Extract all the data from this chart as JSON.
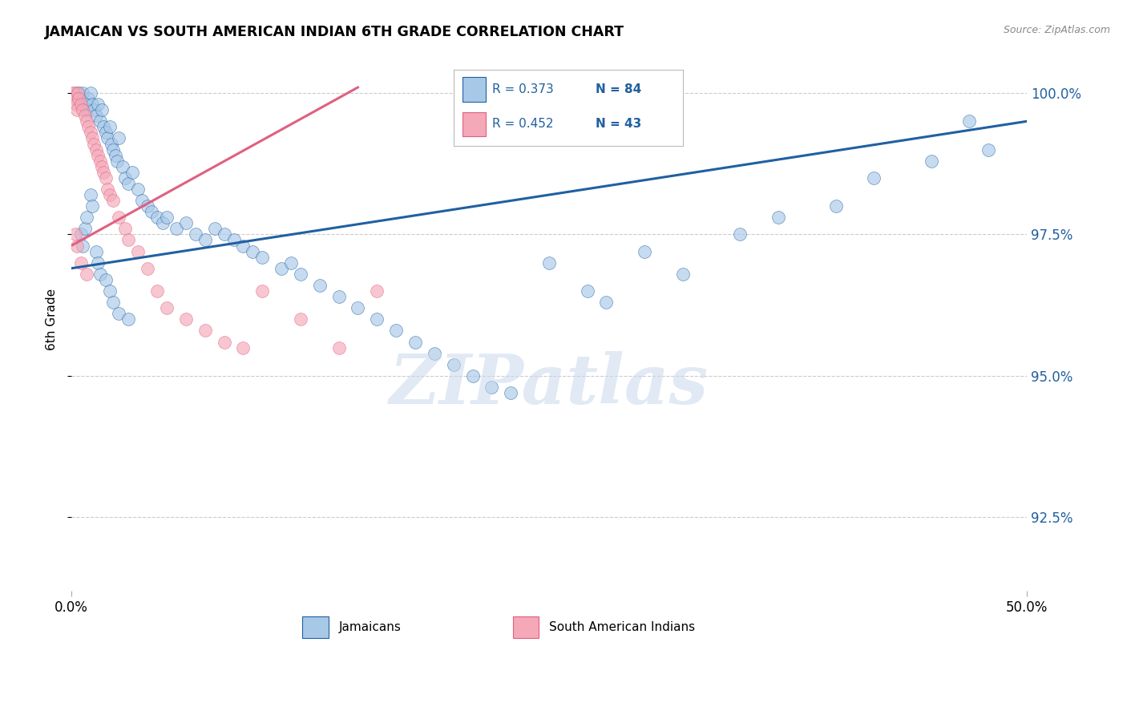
{
  "title": "JAMAICAN VS SOUTH AMERICAN INDIAN 6TH GRADE CORRELATION CHART",
  "source": "Source: ZipAtlas.com",
  "ylabel": "6th Grade",
  "xmin": 0.0,
  "xmax": 50.0,
  "ymin": 91.2,
  "ymax": 100.8,
  "yticks": [
    92.5,
    95.0,
    97.5,
    100.0
  ],
  "ytick_labels": [
    "92.5%",
    "95.0%",
    "97.5%",
    "100.0%"
  ],
  "legend_r1": "R = 0.373",
  "legend_n1": "N = 84",
  "legend_r2": "R = 0.452",
  "legend_n2": "N = 43",
  "color_blue": "#a8c8e8",
  "color_pink": "#f4a8b8",
  "color_blue_line": "#2060a0",
  "color_pink_line": "#e06080",
  "color_text_blue": "#2060a0",
  "background_color": "#ffffff",
  "grid_color": "#cccccc",
  "blue_line_x0": 0.0,
  "blue_line_y0": 96.9,
  "blue_line_x1": 50.0,
  "blue_line_y1": 99.5,
  "pink_line_x0": 0.0,
  "pink_line_y0": 97.3,
  "pink_line_x1": 15.0,
  "pink_line_y1": 100.1,
  "jamaicans_x": [
    0.3,
    0.4,
    0.5,
    0.6,
    0.7,
    0.8,
    0.9,
    1.0,
    1.1,
    1.2,
    1.3,
    1.4,
    1.5,
    1.6,
    1.7,
    1.8,
    1.9,
    2.0,
    2.1,
    2.2,
    2.3,
    2.4,
    2.5,
    2.7,
    2.8,
    3.0,
    3.2,
    3.5,
    3.7,
    4.0,
    4.2,
    4.5,
    4.8,
    5.0,
    5.5,
    6.0,
    6.5,
    7.0,
    7.5,
    8.0,
    8.5,
    9.0,
    9.5,
    10.0,
    11.0,
    11.5,
    12.0,
    13.0,
    14.0,
    15.0,
    16.0,
    17.0,
    18.0,
    19.0,
    20.0,
    21.0,
    22.0,
    23.0,
    25.0,
    27.0,
    28.0,
    30.0,
    32.0,
    35.0,
    37.0,
    40.0,
    42.0,
    45.0,
    47.0,
    48.0,
    0.5,
    0.6,
    0.7,
    0.8,
    1.0,
    1.1,
    1.3,
    1.4,
    1.5,
    1.8,
    2.0,
    2.2,
    2.5,
    3.0
  ],
  "jamaicans_y": [
    100.0,
    100.0,
    99.9,
    100.0,
    99.8,
    99.7,
    99.9,
    100.0,
    99.8,
    99.7,
    99.6,
    99.8,
    99.5,
    99.7,
    99.4,
    99.3,
    99.2,
    99.4,
    99.1,
    99.0,
    98.9,
    98.8,
    99.2,
    98.7,
    98.5,
    98.4,
    98.6,
    98.3,
    98.1,
    98.0,
    97.9,
    97.8,
    97.7,
    97.8,
    97.6,
    97.7,
    97.5,
    97.4,
    97.6,
    97.5,
    97.4,
    97.3,
    97.2,
    97.1,
    96.9,
    97.0,
    96.8,
    96.6,
    96.4,
    96.2,
    96.0,
    95.8,
    95.6,
    95.4,
    95.2,
    95.0,
    94.8,
    94.7,
    97.0,
    96.5,
    96.3,
    97.2,
    96.8,
    97.5,
    97.8,
    98.0,
    98.5,
    98.8,
    99.5,
    99.0,
    97.5,
    97.3,
    97.6,
    97.8,
    98.2,
    98.0,
    97.2,
    97.0,
    96.8,
    96.7,
    96.5,
    96.3,
    96.1,
    96.0
  ],
  "indians_x": [
    0.1,
    0.15,
    0.2,
    0.25,
    0.3,
    0.35,
    0.4,
    0.5,
    0.6,
    0.7,
    0.8,
    0.9,
    1.0,
    1.1,
    1.2,
    1.3,
    1.4,
    1.5,
    1.6,
    1.7,
    1.8,
    1.9,
    2.0,
    2.2,
    2.5,
    2.8,
    3.0,
    3.5,
    4.0,
    4.5,
    5.0,
    6.0,
    7.0,
    8.0,
    9.0,
    10.0,
    12.0,
    14.0,
    16.0,
    0.2,
    0.3,
    0.5,
    0.8
  ],
  "indians_y": [
    100.0,
    100.0,
    99.9,
    99.8,
    99.7,
    100.0,
    99.9,
    99.8,
    99.7,
    99.6,
    99.5,
    99.4,
    99.3,
    99.2,
    99.1,
    99.0,
    98.9,
    98.8,
    98.7,
    98.6,
    98.5,
    98.3,
    98.2,
    98.1,
    97.8,
    97.6,
    97.4,
    97.2,
    96.9,
    96.5,
    96.2,
    96.0,
    95.8,
    95.6,
    95.5,
    96.5,
    96.0,
    95.5,
    96.5,
    97.5,
    97.3,
    97.0,
    96.8
  ]
}
